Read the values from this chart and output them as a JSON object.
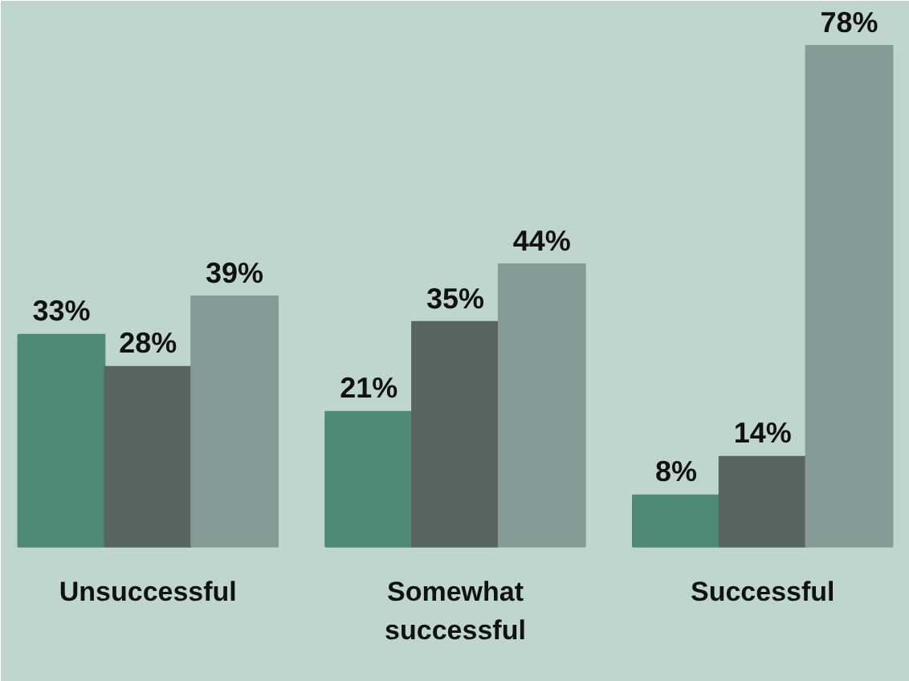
{
  "chart_data": {
    "type": "bar",
    "categories": [
      "Unsuccessful",
      "Somewhat successful",
      "Successful"
    ],
    "series": [
      {
        "color": "#4f8a75",
        "values": [
          33,
          21,
          8
        ],
        "value_labels": [
          "33%",
          "21%",
          "8%"
        ]
      },
      {
        "color": "#59655f",
        "values": [
          28,
          35,
          14
        ],
        "value_labels": [
          "28%",
          "35%",
          "14%"
        ]
      },
      {
        "color": "#869a98",
        "values": [
          39,
          44,
          78
        ],
        "value_labels": [
          "39%",
          "44%",
          "78%"
        ]
      }
    ]
  }
}
